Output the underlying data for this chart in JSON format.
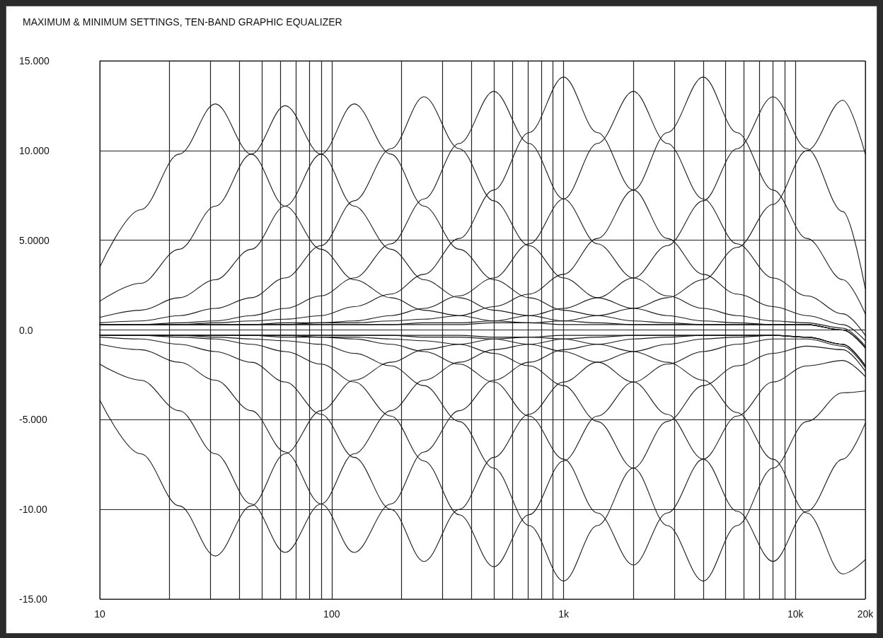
{
  "chart_data": {
    "type": "line",
    "title": "MAXIMUM & MINIMUM SETTINGS, TEN-BAND GRAPHIC EQUALIZER",
    "x": [
      10,
      15,
      22,
      31.5,
      45,
      63,
      90,
      125,
      180,
      250,
      355,
      500,
      710,
      1000,
      1400,
      2000,
      2800,
      4000,
      5600,
      8000,
      11200,
      16000,
      20000
    ],
    "log": "x",
    "grid": true,
    "marker": "none",
    "line_style": "solid",
    "xlim": [
      10,
      20000
    ],
    "ylim": [
      -15,
      15
    ],
    "xticks": [
      10,
      {
        "value": 20,
        "label": null
      },
      {
        "value": 30,
        "label": null
      },
      {
        "value": 40,
        "label": null
      },
      {
        "value": 50,
        "label": null
      },
      {
        "value": 60,
        "label": null
      },
      {
        "value": 70,
        "label": null
      },
      {
        "value": 80,
        "label": null
      },
      {
        "value": 90,
        "label": null
      },
      100,
      {
        "value": 200,
        "label": null
      },
      {
        "value": 300,
        "label": null
      },
      {
        "value": 400,
        "label": null
      },
      {
        "value": 500,
        "label": null
      },
      {
        "value": 600,
        "label": null
      },
      {
        "value": 700,
        "label": null
      },
      {
        "value": 800,
        "label": null
      },
      {
        "value": 900,
        "label": null
      },
      {
        "value": 1000,
        "label": "1k"
      },
      {
        "value": 2000,
        "label": null
      },
      {
        "value": 3000,
        "label": null
      },
      {
        "value": 4000,
        "label": null
      },
      {
        "value": 5000,
        "label": null
      },
      {
        "value": 6000,
        "label": null
      },
      {
        "value": 7000,
        "label": null
      },
      {
        "value": 8000,
        "label": null
      },
      {
        "value": 9000,
        "label": null
      },
      {
        "value": 10000,
        "label": "10k"
      },
      {
        "value": 20000,
        "label": "20k"
      }
    ],
    "yticks": [
      {
        "value": 15,
        "label": "15.000"
      },
      {
        "value": 10,
        "label": "10.000"
      },
      {
        "value": 5,
        "label": "5.0000"
      },
      {
        "value": 0,
        "label": "0.0"
      },
      {
        "value": -5,
        "label": "-5.000"
      },
      {
        "value": -10,
        "label": "-10.00"
      },
      {
        "value": -15,
        "label": "-15.00"
      }
    ],
    "series": [
      {
        "color": "#1a1a1a",
        "values": [
          3.5,
          6.7,
          9.8,
          12.6,
          9.8,
          6.9,
          4.5,
          2.8,
          1.8,
          1.1,
          0.8,
          0.5,
          0.4,
          0.3,
          0.3,
          0.3,
          0.3,
          0.3,
          0.3,
          0.3,
          0.3,
          0.0,
          -1.0
        ]
      },
      {
        "color": "#1a1a1a",
        "values": [
          1.6,
          2.6,
          4.5,
          6.9,
          9.8,
          12.5,
          9.8,
          6.9,
          4.5,
          2.8,
          1.8,
          1.1,
          0.8,
          0.5,
          0.4,
          0.3,
          0.3,
          0.3,
          0.3,
          0.3,
          0.3,
          0.0,
          -1.0
        ]
      },
      {
        "color": "#1a1a1a",
        "values": [
          0.7,
          1.1,
          1.8,
          2.8,
          4.5,
          6.9,
          9.8,
          12.6,
          9.8,
          6.9,
          4.5,
          2.8,
          1.8,
          1.1,
          0.8,
          0.5,
          0.4,
          0.3,
          0.3,
          0.3,
          0.3,
          0.0,
          -1.0
        ]
      },
      {
        "color": "#1a1a1a",
        "values": [
          0.4,
          0.5,
          0.8,
          1.2,
          1.8,
          2.9,
          4.7,
          7.2,
          10.1,
          13.0,
          10.1,
          7.2,
          4.7,
          2.9,
          1.8,
          1.2,
          0.8,
          0.5,
          0.4,
          0.3,
          0.3,
          0.0,
          -1.0
        ]
      },
      {
        "color": "#1a1a1a",
        "values": [
          0.3,
          0.3,
          0.4,
          0.5,
          0.8,
          1.2,
          1.9,
          2.9,
          4.8,
          7.3,
          10.4,
          13.3,
          10.4,
          7.3,
          4.8,
          2.9,
          1.9,
          1.2,
          0.8,
          0.5,
          0.4,
          0.1,
          -0.9
        ]
      },
      {
        "color": "#1a1a1a",
        "values": [
          0.3,
          0.3,
          0.3,
          0.4,
          0.5,
          0.6,
          0.8,
          1.3,
          2.0,
          3.1,
          5.1,
          7.8,
          11.0,
          14.1,
          11.0,
          7.8,
          5.1,
          3.1,
          2.0,
          1.3,
          0.8,
          0.3,
          -0.6
        ]
      },
      {
        "color": "#1a1a1a",
        "values": [
          0.3,
          0.3,
          0.3,
          0.3,
          0.3,
          0.4,
          0.4,
          0.5,
          0.8,
          1.2,
          1.9,
          2.9,
          4.8,
          7.3,
          10.4,
          13.3,
          10.4,
          7.3,
          4.8,
          2.9,
          1.9,
          0.9,
          -0.3
        ]
      },
      {
        "color": "#1a1a1a",
        "values": [
          0.3,
          0.3,
          0.3,
          0.3,
          0.3,
          0.3,
          0.4,
          0.4,
          0.5,
          0.6,
          0.8,
          1.3,
          2.0,
          3.1,
          5.1,
          7.8,
          11.0,
          14.1,
          11.0,
          7.8,
          5.1,
          2.8,
          0.9
        ]
      },
      {
        "color": "#1a1a1a",
        "values": [
          0.3,
          0.3,
          0.3,
          0.3,
          0.3,
          0.3,
          0.3,
          0.3,
          0.3,
          0.4,
          0.4,
          0.5,
          0.8,
          1.2,
          1.8,
          2.9,
          4.7,
          7.2,
          10.1,
          13.0,
          10.1,
          6.6,
          2.3
        ]
      },
      {
        "color": "#1a1a1a",
        "values": [
          0.3,
          0.3,
          0.3,
          0.3,
          0.3,
          0.3,
          0.3,
          0.3,
          0.3,
          0.3,
          0.3,
          0.4,
          0.4,
          0.5,
          0.8,
          1.2,
          1.8,
          2.8,
          4.6,
          7.0,
          10.0,
          12.8,
          9.8
        ]
      },
      {
        "color": "#1a1a1a",
        "values": [
          -3.9,
          -6.9,
          -9.8,
          -12.6,
          -9.8,
          -6.9,
          -4.5,
          -2.8,
          -1.8,
          -1.1,
          -0.8,
          -0.5,
          -0.4,
          -0.3,
          -0.3,
          -0.3,
          -0.3,
          -0.3,
          -0.3,
          -0.3,
          -0.4,
          -0.8,
          -2.0
        ]
      },
      {
        "color": "#1a1a1a",
        "values": [
          -1.9,
          -2.8,
          -4.5,
          -6.9,
          -9.7,
          -12.4,
          -9.7,
          -6.9,
          -4.5,
          -2.8,
          -1.8,
          -1.1,
          -0.8,
          -0.5,
          -0.4,
          -0.3,
          -0.3,
          -0.3,
          -0.3,
          -0.3,
          -0.4,
          -0.8,
          -2.0
        ]
      },
      {
        "color": "#1a1a1a",
        "values": [
          -0.8,
          -1.1,
          -1.8,
          -2.8,
          -4.5,
          -6.8,
          -9.7,
          -12.4,
          -9.7,
          -6.8,
          -4.5,
          -2.8,
          -1.8,
          -1.1,
          -0.8,
          -0.5,
          -0.4,
          -0.3,
          -0.3,
          -0.3,
          -0.4,
          -0.8,
          -2.0
        ]
      },
      {
        "color": "#1a1a1a",
        "values": [
          -0.4,
          -0.5,
          -0.8,
          -1.2,
          -1.8,
          -2.9,
          -4.7,
          -7.1,
          -10.0,
          -12.9,
          -10.0,
          -7.1,
          -4.7,
          -2.9,
          -1.8,
          -1.2,
          -0.8,
          -0.5,
          -0.4,
          -0.3,
          -0.4,
          -0.8,
          -2.0
        ]
      },
      {
        "color": "#1a1a1a",
        "values": [
          -0.3,
          -0.3,
          -0.4,
          -0.5,
          -0.8,
          -1.2,
          -1.9,
          -2.9,
          -4.8,
          -7.3,
          -10.3,
          -13.2,
          -10.3,
          -7.3,
          -4.8,
          -2.9,
          -1.9,
          -1.2,
          -0.8,
          -0.5,
          -0.5,
          -0.9,
          -2.1
        ]
      },
      {
        "color": "#1a1a1a",
        "values": [
          -0.3,
          -0.3,
          -0.3,
          -0.4,
          -0.5,
          -0.6,
          -0.8,
          -1.3,
          -2.0,
          -3.1,
          -5.1,
          -7.7,
          -10.9,
          -14.0,
          -10.9,
          -7.7,
          -5.1,
          -3.1,
          -2.0,
          -1.3,
          -0.9,
          -1.1,
          -2.3
        ]
      },
      {
        "color": "#1a1a1a",
        "values": [
          -0.3,
          -0.3,
          -0.3,
          -0.3,
          -0.3,
          -0.4,
          -0.4,
          -0.5,
          -0.8,
          -1.2,
          -1.9,
          -2.9,
          -4.8,
          -7.2,
          -10.2,
          -13.1,
          -10.2,
          -7.2,
          -4.8,
          -2.9,
          -2.0,
          -1.7,
          -2.6
        ]
      },
      {
        "color": "#1a1a1a",
        "values": [
          -0.3,
          -0.3,
          -0.3,
          -0.3,
          -0.3,
          -0.3,
          -0.4,
          -0.4,
          -0.5,
          -0.6,
          -0.8,
          -1.3,
          -2.0,
          -3.1,
          -5.1,
          -7.7,
          -10.9,
          -14.0,
          -10.9,
          -7.7,
          -5.1,
          -3.5,
          -3.4
        ]
      },
      {
        "color": "#1a1a1a",
        "values": [
          -0.3,
          -0.3,
          -0.3,
          -0.3,
          -0.3,
          -0.3,
          -0.3,
          -0.3,
          -0.3,
          -0.4,
          -0.4,
          -0.5,
          -0.8,
          -1.2,
          -1.8,
          -2.9,
          -4.7,
          -7.2,
          -10.1,
          -12.9,
          -10.1,
          -7.2,
          -5.2
        ]
      },
      {
        "color": "#1a1a1a",
        "values": [
          -0.3,
          -0.3,
          -0.3,
          -0.3,
          -0.3,
          -0.3,
          -0.3,
          -0.3,
          -0.3,
          -0.3,
          -0.3,
          -0.4,
          -0.4,
          -0.5,
          -0.8,
          -1.2,
          -1.8,
          -2.8,
          -4.6,
          -7.2,
          -10.2,
          -13.6,
          -12.8
        ]
      }
    ]
  }
}
